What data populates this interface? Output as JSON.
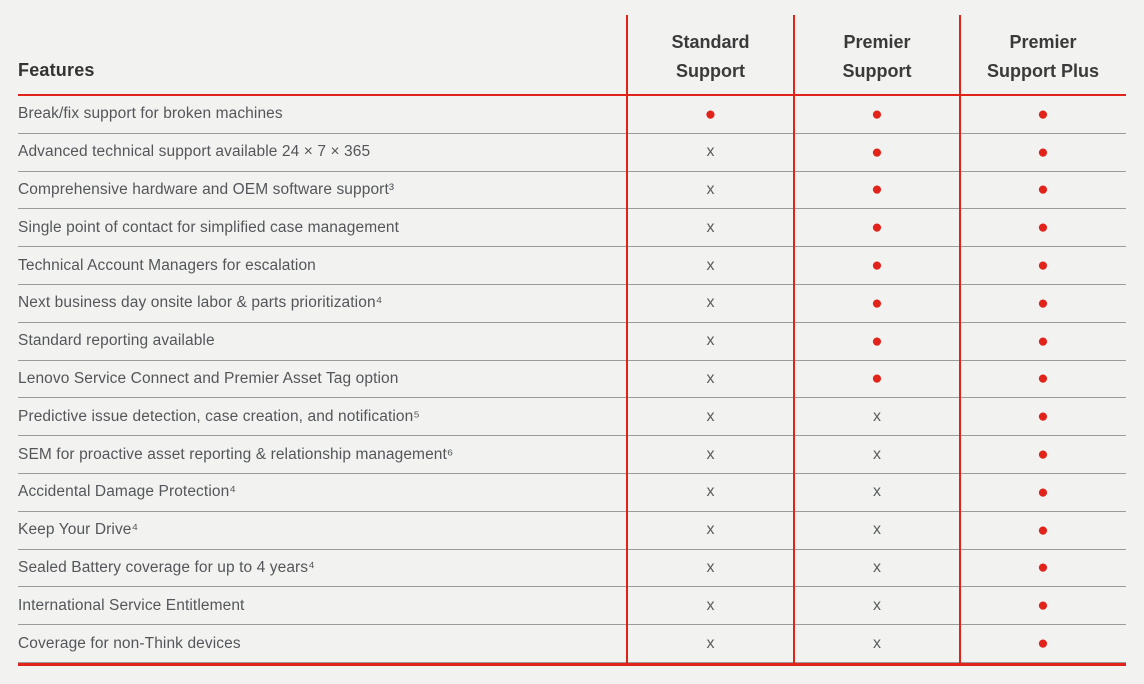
{
  "table": {
    "feature_header": "Features",
    "columns": [
      {
        "label": "Standard Support"
      },
      {
        "label": "Premier Support"
      },
      {
        "label": "Premier Support Plus"
      }
    ]
  },
  "legend": {
    "dot_glyph": "●",
    "x_glyph": "x",
    "dot_meaning": "included",
    "x_meaning": "not-included"
  },
  "colors": {
    "accent_red": "#e2231a",
    "row_divider_gray": "#9b9b9b",
    "text_gray": "#54565a",
    "background": "#f2f2f0"
  },
  "rows": [
    {
      "feature": "Break/fix support for broken machines",
      "marks": [
        "dot",
        "dot",
        "dot"
      ]
    },
    {
      "feature": "Advanced technical support available 24 × 7 × 365",
      "marks": [
        "x",
        "dot",
        "dot"
      ]
    },
    {
      "feature": "Comprehensive hardware and OEM software support³",
      "marks": [
        "x",
        "dot",
        "dot"
      ]
    },
    {
      "feature": "Single point of contact for simplified case management",
      "marks": [
        "x",
        "dot",
        "dot"
      ]
    },
    {
      "feature": "Technical Account Managers for escalation",
      "marks": [
        "x",
        "dot",
        "dot"
      ]
    },
    {
      "feature": "Next business day onsite labor & parts prioritization⁴",
      "marks": [
        "x",
        "dot",
        "dot"
      ]
    },
    {
      "feature": "Standard reporting available",
      "marks": [
        "x",
        "dot",
        "dot"
      ]
    },
    {
      "feature": "Lenovo Service Connect and Premier Asset Tag option",
      "marks": [
        "x",
        "dot",
        "dot"
      ]
    },
    {
      "feature": "Predictive issue detection, case creation, and notification⁵",
      "marks": [
        "x",
        "x",
        "dot"
      ]
    },
    {
      "feature": "SEM for proactive asset reporting & relationship management⁶",
      "marks": [
        "x",
        "x",
        "dot"
      ]
    },
    {
      "feature": "Accidental Damage Protection⁴",
      "marks": [
        "x",
        "x",
        "dot"
      ]
    },
    {
      "feature": "Keep Your Drive⁴",
      "marks": [
        "x",
        "x",
        "dot"
      ]
    },
    {
      "feature": "Sealed Battery coverage for up to 4 years⁴",
      "marks": [
        "x",
        "x",
        "dot"
      ]
    },
    {
      "feature": "International Service Entitlement",
      "marks": [
        "x",
        "x",
        "dot"
      ]
    },
    {
      "feature": "Coverage for non-Think devices",
      "marks": [
        "x",
        "x",
        "dot"
      ]
    }
  ]
}
